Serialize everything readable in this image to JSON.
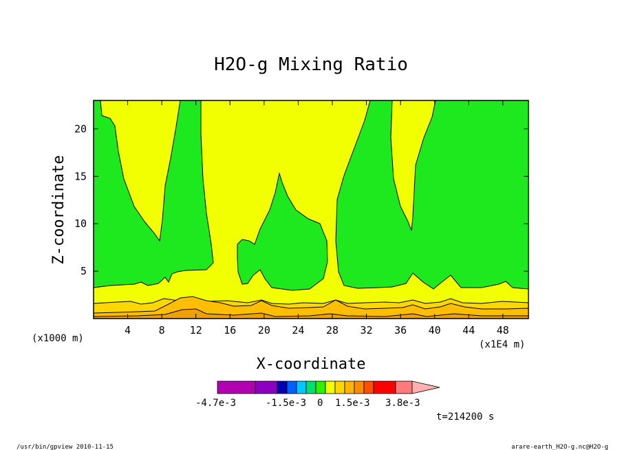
{
  "chart_data": {
    "type": "contour",
    "title": "H2O-g Mixing Ratio",
    "xlabel": "X-coordinate",
    "ylabel": "Z-coordinate",
    "x_unit_left": "(x1000 m)",
    "x_unit_right": "(x1E4 m)",
    "xlim": [
      0,
      51
    ],
    "ylim": [
      0,
      23
    ],
    "x_ticks": [
      4,
      8,
      12,
      16,
      20,
      24,
      28,
      32,
      36,
      40,
      44,
      48
    ],
    "y_ticks": [
      5,
      10,
      15,
      20
    ],
    "contour_fills": {
      "background": "#f2ff00",
      "green": "#1ee81e",
      "yellow_dark": "#ffd700",
      "gold": "#ffc000",
      "orange": "#f0a000"
    },
    "colorbar": {
      "colors": [
        "#b000b0",
        "#8c00c0",
        "#0000b0",
        "#0060ff",
        "#00c8ff",
        "#00e070",
        "#30f000",
        "#f2ff00",
        "#ffd700",
        "#ffb400",
        "#ff8c00",
        "#ff5000",
        "#ff0000",
        "#ff7a7a",
        "#ffb0b0"
      ],
      "labels": [
        "-4.7e-3",
        "-1.5e-3",
        "0",
        "1.5e-3",
        "3.8e-3"
      ]
    },
    "time_label": "t=214200 s"
  },
  "footer": {
    "left": "/usr/bin/gpview  2010-11-15",
    "right": "arare-earth_H2O-g.nc@H2O-g"
  }
}
